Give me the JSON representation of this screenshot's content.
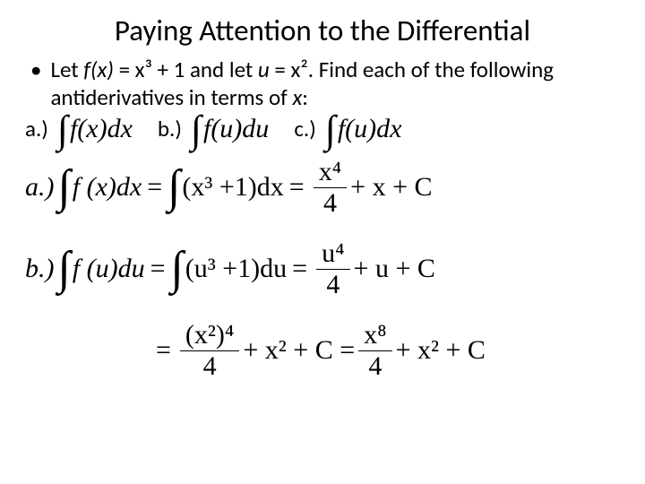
{
  "title": "Paying Attention to the Differential",
  "bullet": {
    "prefix": "Let ",
    "fx": "f(x)",
    "mid1": " = x³ + 1 and let ",
    "u": "u",
    "mid2": " = x².  Find each of the following antiderivatives in terms of ",
    "xvar": "x",
    "end": ":"
  },
  "parts": {
    "a": {
      "label": "a.)",
      "expr_fn": "f(x)dx"
    },
    "b": {
      "label": "b.)",
      "expr_fn": "f(u)du"
    },
    "c": {
      "label": "c.)",
      "expr_fn": "f(u)dx"
    }
  },
  "solutions": {
    "a": {
      "label": "a.)",
      "lhs_fn": "f (x)dx",
      "rhs1": "(x³ +1)dx",
      "frac_num": "x⁴",
      "frac_den": "4",
      "tail": "+ x + C"
    },
    "b": {
      "label": "b.)",
      "lhs_fn": "f (u)du",
      "rhs1": "(u³ +1)du",
      "frac_num": "u⁴",
      "frac_den": "4",
      "tail": "+ u + C"
    },
    "b2": {
      "frac1_num": "(x²)⁴",
      "frac1_den": "4",
      "mid": "+ x² + C =",
      "frac2_num": "x⁸",
      "frac2_den": "4",
      "tail": "+ x² + C"
    }
  }
}
